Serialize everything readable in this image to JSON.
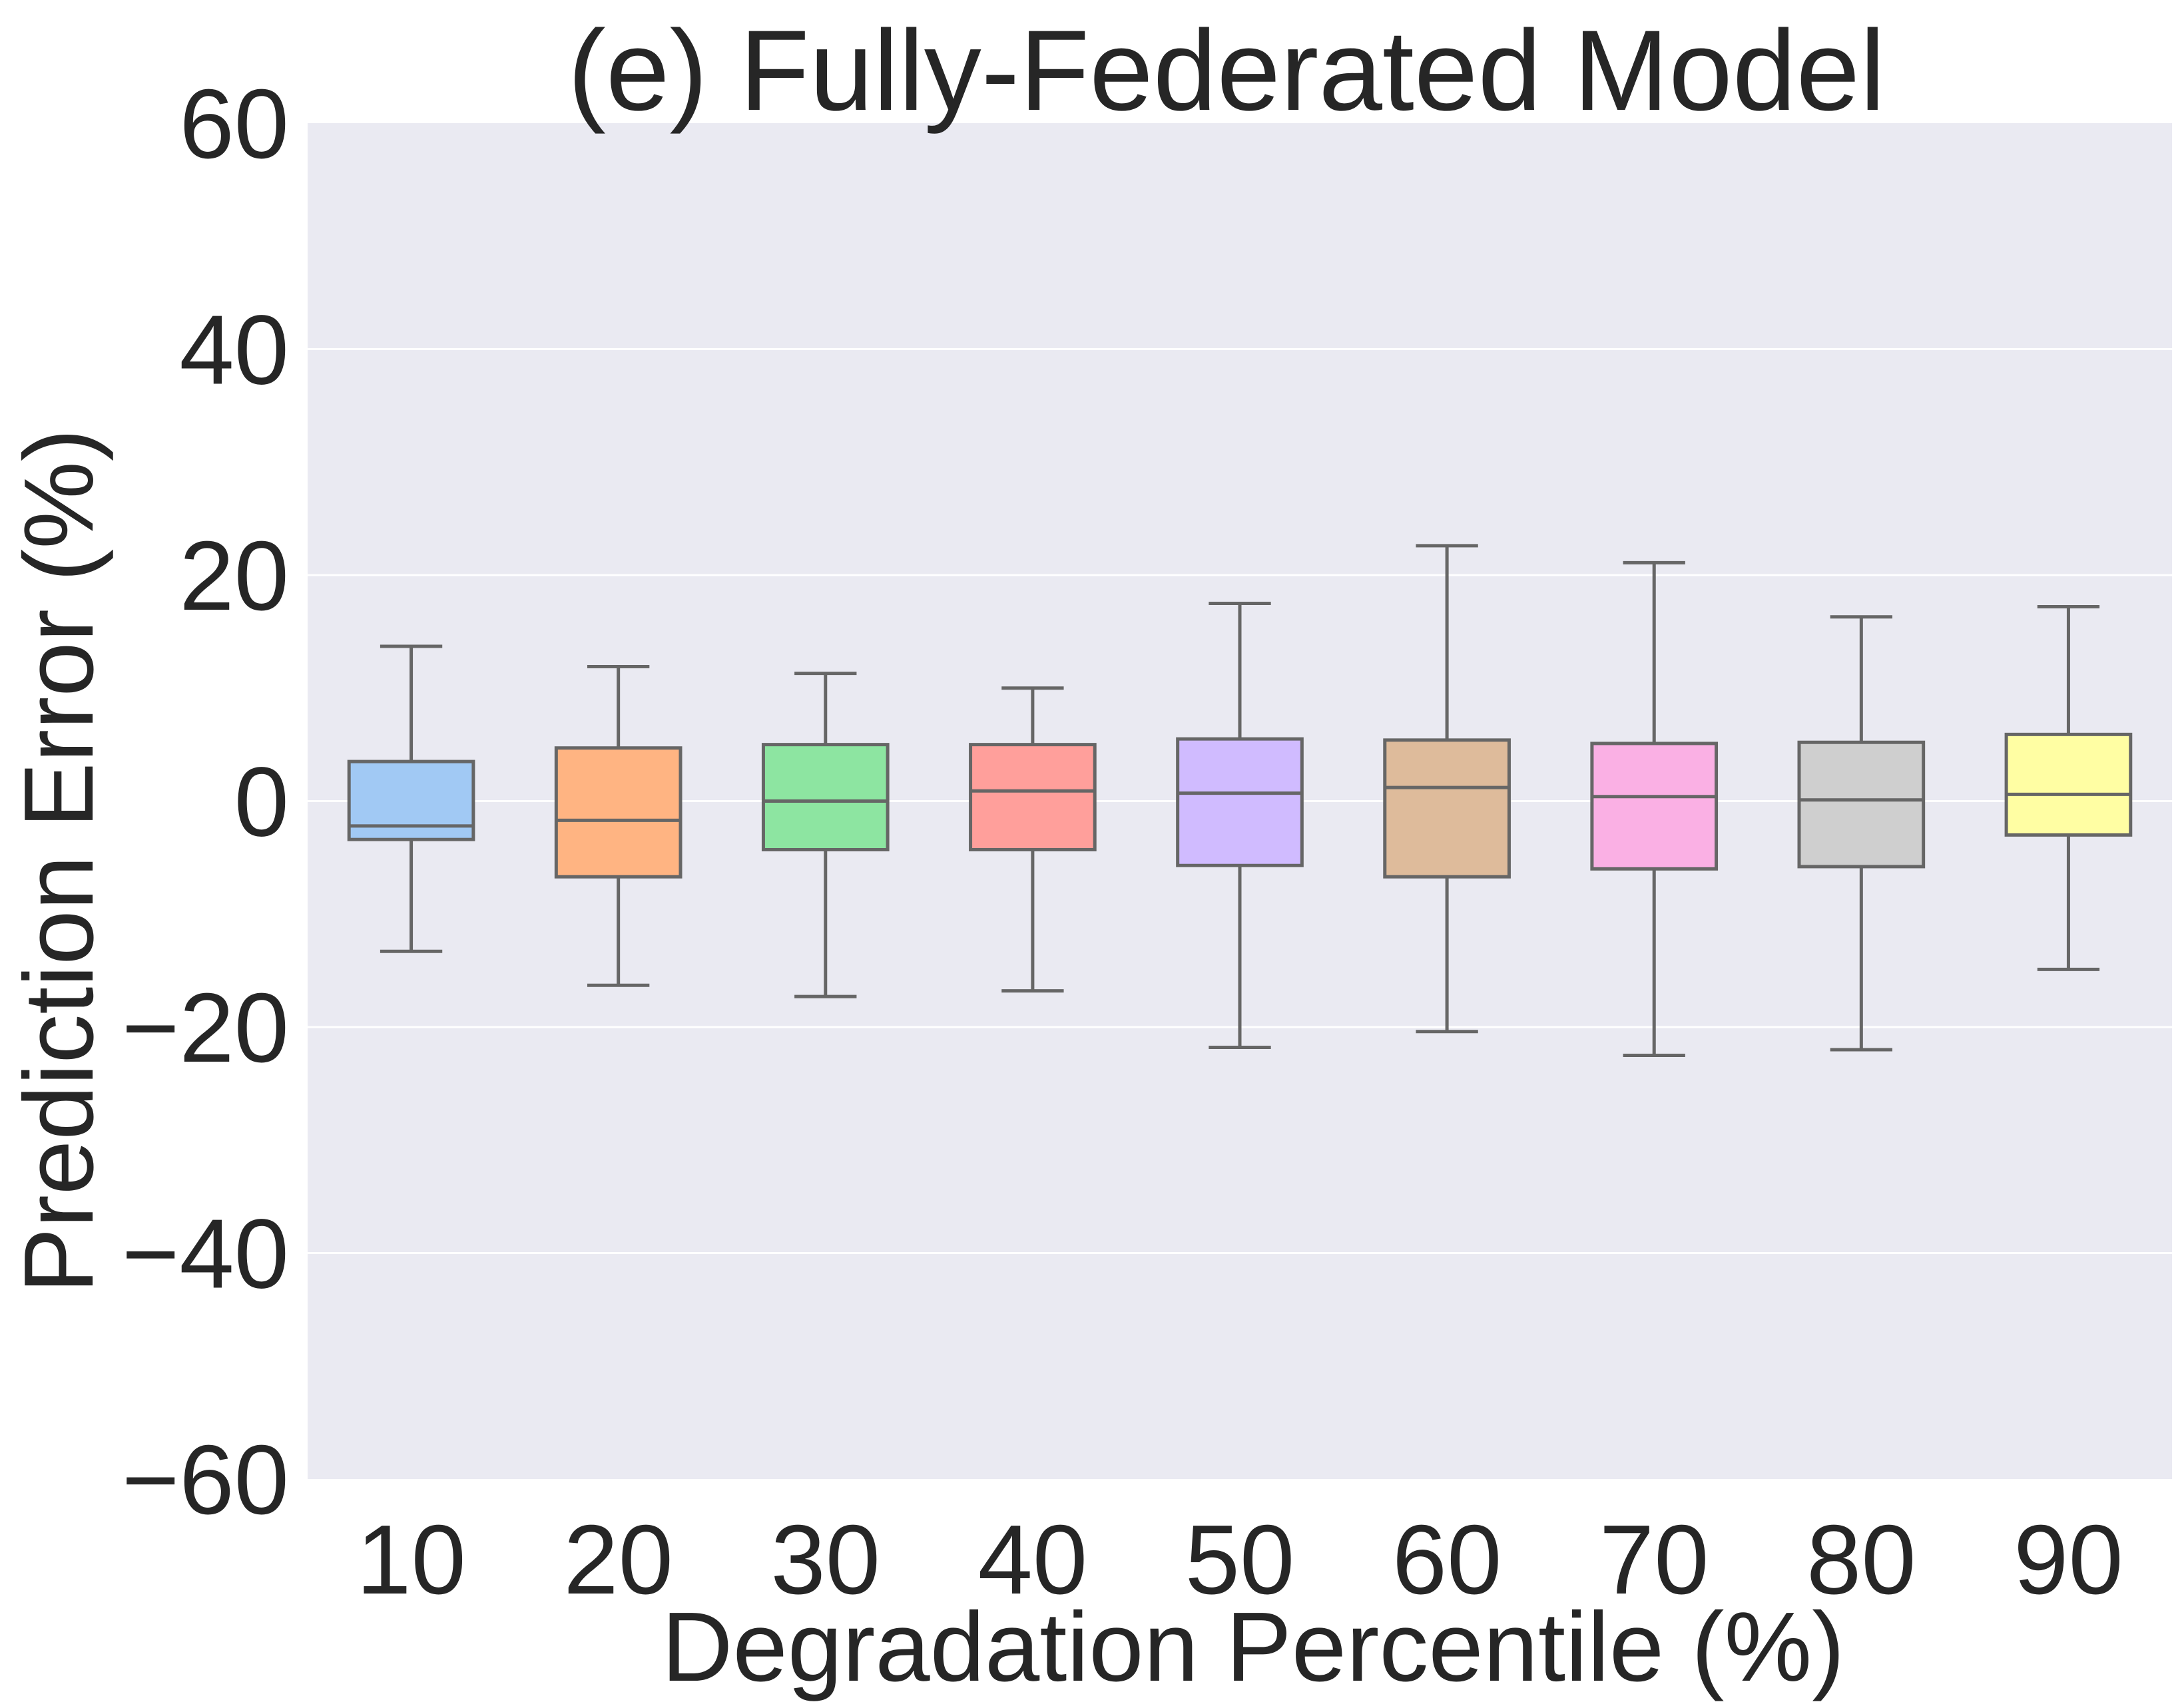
{
  "chart_data": {
    "type": "box",
    "title": "(e) Fully-Federated Model",
    "xlabel": "Degradation Percentile (%)",
    "ylabel": "Prediction Error (%)",
    "ylim": [
      -60,
      60
    ],
    "yticks": [
      -60,
      -40,
      -20,
      0,
      20,
      40,
      60
    ],
    "ytick_labels": [
      "−60",
      "−40",
      "−20",
      "0",
      "20",
      "40",
      "60"
    ],
    "grid": true,
    "categories": [
      "10",
      "20",
      "30",
      "40",
      "50",
      "60",
      "70",
      "80",
      "90"
    ],
    "boxes": [
      {
        "category": "10",
        "whisker_low": -13.3,
        "q1": -3.4,
        "median": -2.2,
        "q3": 3.5,
        "whisker_high": 13.7,
        "color": "#a1c9f4"
      },
      {
        "category": "20",
        "whisker_low": -16.3,
        "q1": -6.7,
        "median": -1.7,
        "q3": 4.7,
        "whisker_high": 11.9,
        "color": "#ffb482"
      },
      {
        "category": "30",
        "whisker_low": -17.3,
        "q1": -4.3,
        "median": 0.0,
        "q3": 5.0,
        "whisker_high": 11.3,
        "color": "#8de5a1"
      },
      {
        "category": "40",
        "whisker_low": -16.8,
        "q1": -4.3,
        "median": 0.9,
        "q3": 5.0,
        "whisker_high": 10.0,
        "color": "#ff9f9b"
      },
      {
        "category": "50",
        "whisker_low": -21.8,
        "q1": -5.7,
        "median": 0.7,
        "q3": 5.5,
        "whisker_high": 17.5,
        "color": "#d0bbff"
      },
      {
        "category": "60",
        "whisker_low": -20.4,
        "q1": -6.7,
        "median": 1.2,
        "q3": 5.4,
        "whisker_high": 22.6,
        "color": "#debb9b"
      },
      {
        "category": "70",
        "whisker_low": -22.5,
        "q1": -6.0,
        "median": 0.4,
        "q3": 5.1,
        "whisker_high": 21.1,
        "color": "#fab0e4"
      },
      {
        "category": "80",
        "whisker_low": -22.0,
        "q1": -5.8,
        "median": 0.1,
        "q3": 5.2,
        "whisker_high": 16.3,
        "color": "#cfcfcf"
      },
      {
        "category": "90",
        "whisker_low": -14.9,
        "q1": -3.0,
        "median": 0.6,
        "q3": 5.9,
        "whisker_high": 17.2,
        "color": "#fffea3"
      }
    ]
  }
}
